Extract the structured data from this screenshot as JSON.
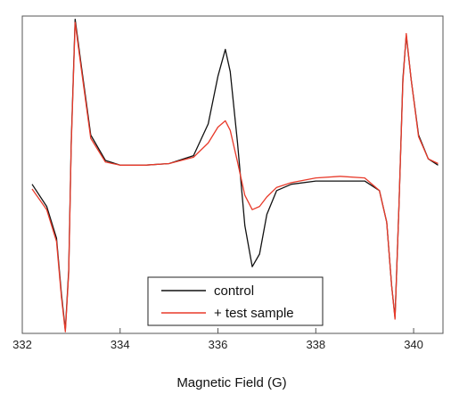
{
  "chart_data": {
    "type": "line",
    "title": "",
    "xlabel": "Magnetic Field (G)",
    "ylabel": "",
    "xlim": [
      332,
      340.6
    ],
    "ylim": [
      -1.0,
      1.0
    ],
    "xticks": [
      332,
      334,
      336,
      338,
      340
    ],
    "grid": false,
    "legend": "bottom-center",
    "series": [
      {
        "name": "control",
        "color": "#111111",
        "x": [
          332.2,
          332.5,
          332.7,
          332.8,
          332.88,
          332.95,
          333.0,
          333.08,
          333.2,
          333.4,
          333.7,
          334.0,
          334.5,
          335.0,
          335.5,
          335.8,
          336.0,
          336.15,
          336.25,
          336.4,
          336.55,
          336.7,
          336.85,
          337.0,
          337.2,
          337.5,
          338.0,
          338.5,
          339.0,
          339.3,
          339.45,
          339.55,
          339.62,
          339.7,
          339.78,
          339.85,
          339.95,
          340.1,
          340.3,
          340.5
        ],
        "y": [
          -0.06,
          -0.2,
          -0.4,
          -0.75,
          -0.98,
          -0.6,
          0.2,
          0.98,
          0.7,
          0.25,
          0.09,
          0.06,
          0.06,
          0.07,
          0.12,
          0.32,
          0.62,
          0.79,
          0.65,
          0.2,
          -0.32,
          -0.58,
          -0.5,
          -0.25,
          -0.1,
          -0.06,
          -0.04,
          -0.04,
          -0.04,
          -0.1,
          -0.3,
          -0.7,
          -0.9,
          -0.2,
          0.6,
          0.88,
          0.6,
          0.25,
          0.1,
          0.06
        ]
      },
      {
        "name": "+ test sample",
        "color": "#e83a2a",
        "x": [
          332.2,
          332.5,
          332.7,
          332.8,
          332.88,
          332.95,
          333.0,
          333.08,
          333.2,
          333.4,
          333.7,
          334.0,
          334.5,
          335.0,
          335.5,
          335.8,
          336.0,
          336.15,
          336.25,
          336.4,
          336.55,
          336.7,
          336.85,
          337.0,
          337.2,
          337.5,
          338.0,
          338.5,
          339.0,
          339.3,
          339.45,
          339.55,
          339.62,
          339.7,
          339.78,
          339.85,
          339.95,
          340.1,
          340.3,
          340.5
        ],
        "y": [
          -0.09,
          -0.22,
          -0.42,
          -0.77,
          -0.99,
          -0.62,
          0.18,
          0.96,
          0.68,
          0.23,
          0.08,
          0.06,
          0.06,
          0.07,
          0.11,
          0.2,
          0.3,
          0.34,
          0.28,
          0.08,
          -0.13,
          -0.22,
          -0.2,
          -0.14,
          -0.08,
          -0.05,
          -0.02,
          -0.01,
          -0.02,
          -0.1,
          -0.3,
          -0.7,
          -0.91,
          -0.2,
          0.58,
          0.89,
          0.6,
          0.24,
          0.1,
          0.07
        ]
      }
    ]
  }
}
